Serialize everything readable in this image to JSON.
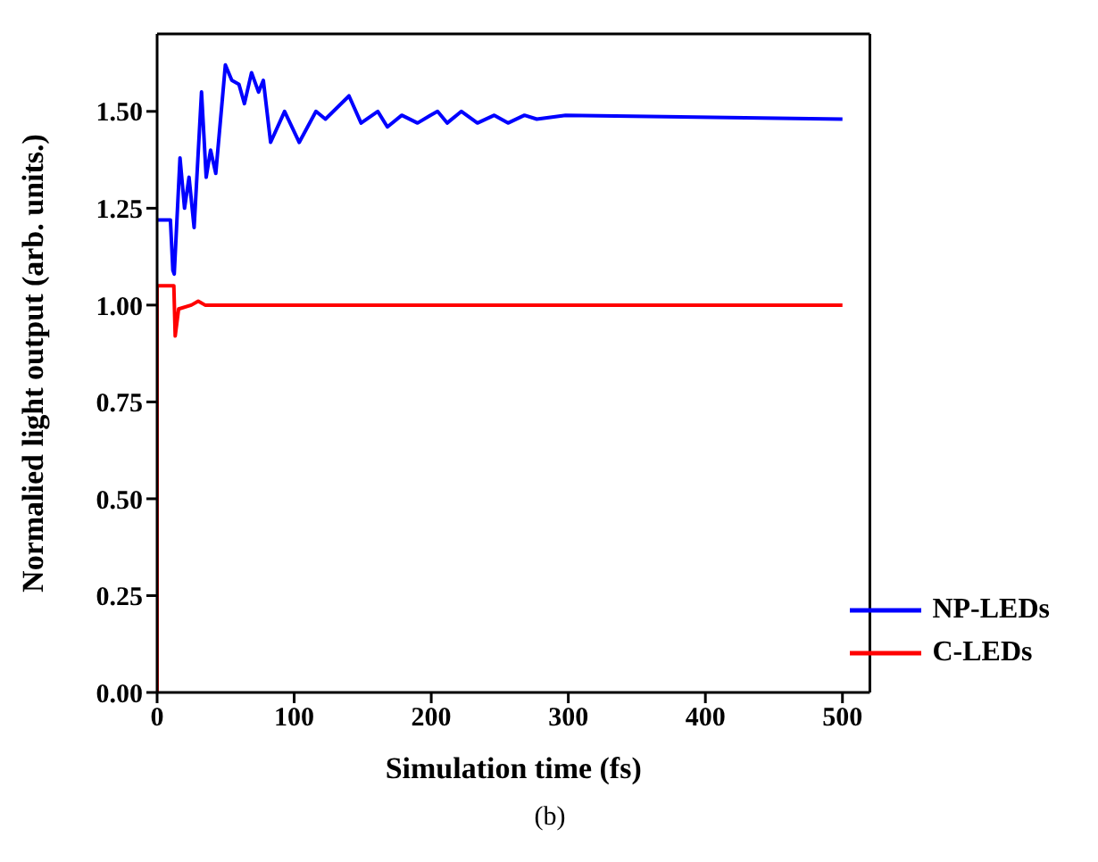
{
  "chart_data": {
    "type": "line",
    "xlabel": "Simulation time (fs)",
    "ylabel": "Normalied light output (arb. units.)",
    "xlim": [
      0,
      520
    ],
    "xticks": [
      0,
      100,
      200,
      300,
      400,
      500
    ],
    "ylim": [
      0,
      1.7
    ],
    "yticks": [
      {
        "value": 0,
        "label": "0.00"
      },
      {
        "value": 0.25,
        "label": "0.25"
      },
      {
        "value": 0.5,
        "label": "0.50"
      },
      {
        "value": 0.75,
        "label": "0.75"
      },
      {
        "value": 1,
        "label": "1.00"
      },
      {
        "value": 1.25,
        "label": "1.25"
      },
      {
        "value": 1.5,
        "label": "1.50"
      }
    ],
    "legend": "bottom right",
    "marker": "none",
    "line_style": "solid",
    "annotations": [
      "(b)"
    ],
    "series": [
      {
        "name": "NP-LEDs",
        "color": "#0000ff",
        "x": [
          0,
          9.7,
          11.5,
          12.5,
          16.7,
          20,
          23.3,
          27,
          32.4,
          35.8,
          39,
          42.8,
          49.8,
          54.5,
          59.7,
          63.7,
          68.9,
          74,
          77.5,
          82.8,
          93,
          103.7,
          115.9,
          122.8,
          140,
          148.8,
          161,
          168,
          178.5,
          190,
          199.4,
          204.6,
          211.6,
          222,
          233.7,
          246,
          256,
          268,
          277,
          298,
          500
        ],
        "values": [
          1.22,
          1.22,
          1.09,
          1.08,
          1.38,
          1.25,
          1.33,
          1.2,
          1.55,
          1.33,
          1.4,
          1.34,
          1.62,
          1.58,
          1.57,
          1.52,
          1.6,
          1.55,
          1.58,
          1.42,
          1.5,
          1.42,
          1.5,
          1.48,
          1.54,
          1.47,
          1.5,
          1.46,
          1.49,
          1.47,
          1.49,
          1.5,
          1.47,
          1.5,
          1.47,
          1.49,
          1.47,
          1.49,
          1.48,
          1.49,
          1.48
        ]
      },
      {
        "name": "C-LEDs",
        "color": "#ff0000",
        "x": [
          0,
          0,
          12.2,
          13.2,
          15.7,
          25,
          30,
          35,
          500
        ],
        "values": [
          0,
          1.05,
          1.05,
          0.92,
          0.99,
          1.0,
          1.01,
          1.0,
          1.0
        ]
      }
    ]
  }
}
